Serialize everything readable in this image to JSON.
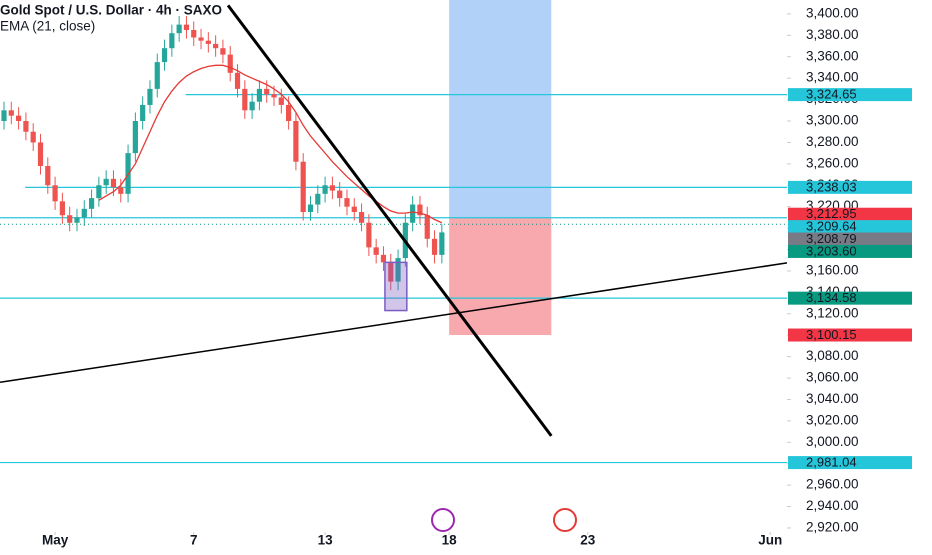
{
  "chart_data": {
    "type": "candlestick",
    "title": "Gold Spot / U.S. Dollar · 4h · SAXO",
    "indicator_label": "EMA (21, close)",
    "xlim": [
      -0.55,
      107.3
    ],
    "xticks": [
      {
        "value": 7,
        "label": "May"
      },
      {
        "value": 26,
        "label": "7"
      },
      {
        "value": 44,
        "label": "13"
      },
      {
        "value": 61,
        "label": "18"
      },
      {
        "value": 80,
        "label": "23"
      },
      {
        "value": 105,
        "label": "Jun"
      }
    ],
    "ylim": [
      2899.4,
      3413
    ],
    "yticks": [
      {
        "value": 2920,
        "label": "2,920.00"
      },
      {
        "value": 2940,
        "label": "2,940.00"
      },
      {
        "value": 2960,
        "label": "2,960.00"
      },
      {
        "value": 2980,
        "label": "2,980.00"
      },
      {
        "value": 3000,
        "label": "3,000.00"
      },
      {
        "value": 3020,
        "label": "3,020.00"
      },
      {
        "value": 3040,
        "label": "3,040.00"
      },
      {
        "value": 3060,
        "label": "3,060.00"
      },
      {
        "value": 3080,
        "label": "3,080.00"
      },
      {
        "value": 3100,
        "label": "3,100.00"
      },
      {
        "value": 3120,
        "label": "3,120.00"
      },
      {
        "value": 3140,
        "label": "3,140.00"
      },
      {
        "value": 3160,
        "label": "3,160.00"
      },
      {
        "value": 3180,
        "label": "3,180.00"
      },
      {
        "value": 3200,
        "label": "3,200.00"
      },
      {
        "value": 3220,
        "label": "3,220.00"
      },
      {
        "value": 3240,
        "label": "3,240.00"
      },
      {
        "value": 3260,
        "label": "3,260.00"
      },
      {
        "value": 3280,
        "label": "3,280.00"
      },
      {
        "value": 3300,
        "label": "3,300.00"
      },
      {
        "value": 3320,
        "label": "3,320.00"
      },
      {
        "value": 3340,
        "label": "3,340.00"
      },
      {
        "value": 3360,
        "label": "3,360.00"
      },
      {
        "value": 3380,
        "label": "3,380.00"
      },
      {
        "value": 3400,
        "label": "3,400.00"
      }
    ],
    "up_color": "#26a69a",
    "down_color": "#ef5350",
    "open": [
      3300,
      3310,
      3305,
      3300,
      3290,
      3280,
      3258,
      3240,
      3225,
      3212,
      3205,
      3210,
      3218,
      3228,
      3240,
      3246,
      3238,
      3232,
      3270,
      3300,
      3315,
      3330,
      3355,
      3368,
      3382,
      3390,
      3385,
      3378,
      3375,
      3372,
      3368,
      3362,
      3345,
      3330,
      3310,
      3318,
      3330,
      3325,
      3322,
      3315,
      3300,
      3262,
      3215,
      3222,
      3232,
      3240,
      3235,
      3228,
      3220,
      3215,
      3205,
      3182,
      3175,
      3168,
      3150,
      3172,
      3205,
      3222,
      3212,
      3190,
      3175
    ],
    "high": [
      3318,
      3318,
      3313,
      3308,
      3298,
      3288,
      3266,
      3248,
      3233,
      3220,
      3218,
      3226,
      3236,
      3248,
      3254,
      3254,
      3246,
      3278,
      3308,
      3323,
      3338,
      3363,
      3376,
      3390,
      3398,
      3398,
      3393,
      3386,
      3383,
      3380,
      3376,
      3370,
      3353,
      3338,
      3326,
      3338,
      3338,
      3333,
      3330,
      3323,
      3308,
      3270,
      3230,
      3240,
      3248,
      3248,
      3243,
      3236,
      3228,
      3223,
      3213,
      3190,
      3183,
      3176,
      3180,
      3213,
      3230,
      3230,
      3220,
      3198,
      3204
    ],
    "low": [
      3292,
      3297,
      3292,
      3282,
      3272,
      3250,
      3232,
      3217,
      3204,
      3197,
      3197,
      3202,
      3210,
      3220,
      3232,
      3230,
      3224,
      3224,
      3262,
      3292,
      3307,
      3322,
      3347,
      3360,
      3374,
      3377,
      3370,
      3367,
      3364,
      3360,
      3354,
      3337,
      3322,
      3302,
      3302,
      3310,
      3317,
      3314,
      3307,
      3292,
      3254,
      3207,
      3207,
      3214,
      3224,
      3227,
      3220,
      3212,
      3207,
      3197,
      3174,
      3167,
      3160,
      3142,
      3142,
      3164,
      3197,
      3204,
      3182,
      3167,
      3167
    ],
    "close": [
      3310,
      3305,
      3300,
      3290,
      3280,
      3258,
      3240,
      3225,
      3212,
      3205,
      3210,
      3218,
      3228,
      3240,
      3246,
      3238,
      3232,
      3270,
      3300,
      3315,
      3330,
      3355,
      3368,
      3382,
      3390,
      3385,
      3378,
      3375,
      3372,
      3368,
      3362,
      3345,
      3330,
      3310,
      3318,
      3330,
      3325,
      3322,
      3315,
      3300,
      3262,
      3215,
      3222,
      3232,
      3240,
      3235,
      3228,
      3220,
      3215,
      3205,
      3182,
      3175,
      3168,
      3150,
      3172,
      3205,
      3222,
      3212,
      3190,
      3175,
      3196
    ],
    "ema": {
      "color": "#e53935",
      "values": [
        null,
        null,
        null,
        null,
        null,
        null,
        null,
        null,
        null,
        null,
        null,
        null,
        null,
        3226,
        3230,
        3234,
        3240,
        3250,
        3260,
        3275,
        3290,
        3305,
        3318,
        3328,
        3336,
        3342,
        3346,
        3349,
        3351,
        3352,
        3352,
        3350,
        3347,
        3343,
        3340,
        3337,
        3334,
        3330,
        3325,
        3318,
        3308,
        3296,
        3286,
        3278,
        3270,
        3262,
        3255,
        3248,
        3242,
        3236,
        3230,
        3225,
        3220,
        3216,
        3214,
        3214,
        3215,
        3214,
        3212,
        3208,
        3205
      ]
    },
    "levels": [
      {
        "value": 3324.65,
        "start": 24.9
      },
      {
        "value": 3238.03,
        "start": 2.9
      },
      {
        "value": 3209.64,
        "start": -0.55
      },
      {
        "value": 3134.58,
        "start": -0.55
      },
      {
        "value": 2981.04,
        "start": -0.55
      }
    ],
    "level_color": "#26c6da",
    "current_price": 3203.6,
    "position": {
      "start": 61,
      "end": 75,
      "entry": 3209.64,
      "target": 3413,
      "stop": 3100.15,
      "target_color": "#90bdf5",
      "stop_color": "#f48c93"
    },
    "trendlines": [
      {
        "x": [
          30.7,
          75
        ],
        "y": [
          3408,
          3006
        ],
        "width": 3
      },
      {
        "x": [
          -0.55,
          107.3
        ],
        "y": [
          3056,
          3167.5
        ],
        "width": 1.5
      }
    ],
    "highlight_box": {
      "x": [
        52.2,
        55.2
      ],
      "y": [
        3123,
        3168
      ],
      "color": "#7b5cc4"
    },
    "price_labels": [
      {
        "value": 3324.65,
        "label": "3,324.65",
        "color": "#26c6da"
      },
      {
        "value": 3238.03,
        "label": "3,238.03",
        "color": "#26c6da"
      },
      {
        "value": 3212.95,
        "label": "3,212.95",
        "color": "#f23645"
      },
      {
        "value": 3209.64,
        "label": "3,209.64",
        "color": "#26c6da"
      },
      {
        "value": 3208.79,
        "label": "3,208.79",
        "color": "#787b86"
      },
      {
        "value": 3203.6,
        "label": "3,203.60",
        "color": "#089981"
      },
      {
        "value": 3134.58,
        "label": "3,134.58",
        "color": "#089981"
      },
      {
        "value": 3100.15,
        "label": "3,100.15",
        "color": "#f23645"
      },
      {
        "value": 2981.04,
        "label": "2,981.04",
        "color": "#26c6da"
      }
    ]
  }
}
